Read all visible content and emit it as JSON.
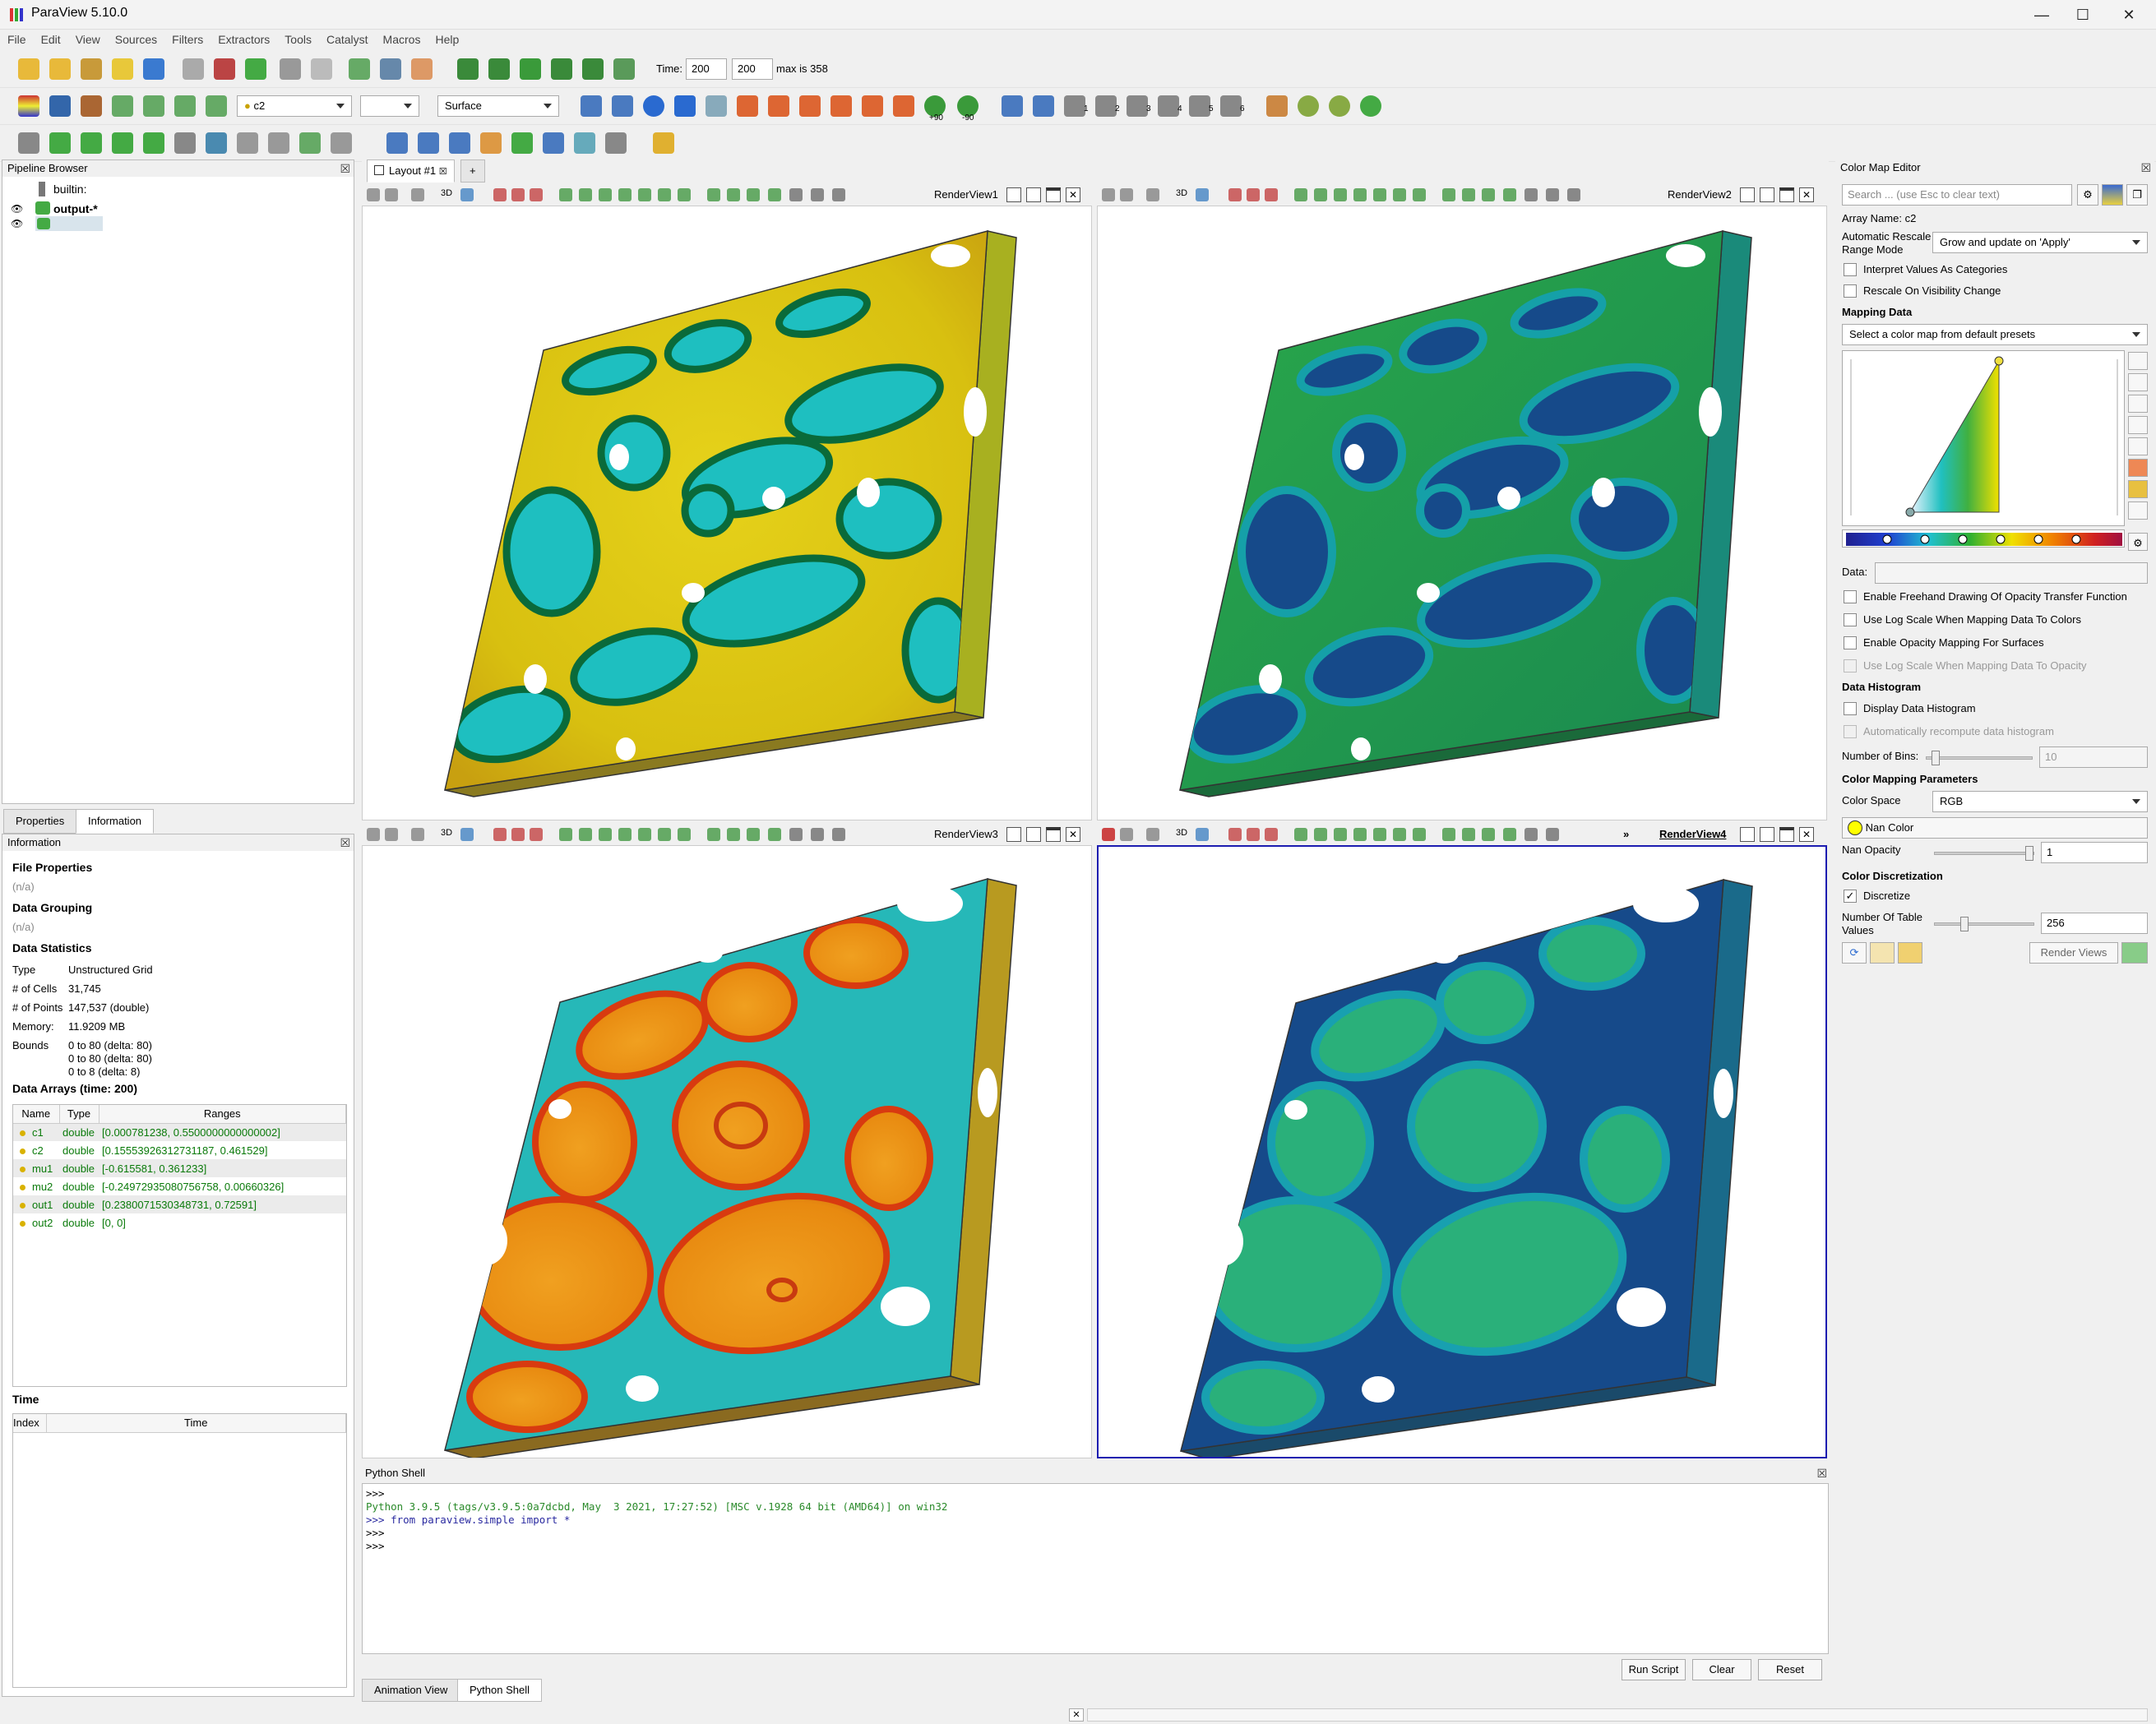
{
  "window": {
    "title": "ParaView 5.10.0",
    "min": "—",
    "max": "☐",
    "close": "✕"
  },
  "menu": [
    "File",
    "Edit",
    "View",
    "Sources",
    "Filters",
    "Extractors",
    "Tools",
    "Catalyst",
    "Macros",
    "Help"
  ],
  "toolbar": {
    "time_label": "Time:",
    "time_value": "200",
    "time_index": "200",
    "time_max": "max is 358",
    "array_combo": "c2",
    "component_combo": "",
    "representation_combo": "Surface",
    "rotate_pos": "+90",
    "rotate_neg": "-90",
    "camera_labels": [
      "1",
      "2",
      "3",
      "4",
      "5",
      "6"
    ]
  },
  "pipeline": {
    "title": "Pipeline Browser",
    "items": [
      "builtin:",
      "output-*",
      ""
    ]
  },
  "left_tabs": [
    "Properties",
    "Information"
  ],
  "information": {
    "title": "Information",
    "file_properties": "File Properties",
    "file_na": "(n/a)",
    "data_grouping": "Data Grouping",
    "grouping_na": "(n/a)",
    "data_statistics": "Data Statistics",
    "stats": [
      {
        "k": "Type",
        "v": "Unstructured Grid"
      },
      {
        "k": "# of Cells",
        "v": "31,745"
      },
      {
        "k": "# of Points",
        "v": "147,537 (double)"
      },
      {
        "k": "Memory:",
        "v": "11.9209 MB"
      }
    ],
    "bounds_label": "Bounds",
    "bounds": [
      "0 to 80 (delta: 80)",
      "0 to 80 (delta: 80)",
      "0 to 8 (delta: 8)"
    ],
    "data_arrays_title": "Data Arrays (time: 200)",
    "array_headers": [
      "Name",
      "Type",
      "Ranges"
    ],
    "arrays": [
      {
        "name": "c1",
        "type": "double",
        "range": "[0.000781238, 0.5500000000000002]"
      },
      {
        "name": "c2",
        "type": "double",
        "range": "[0.15553926312731187, 0.461529]"
      },
      {
        "name": "mu1",
        "type": "double",
        "range": "[-0.615581, 0.361233]"
      },
      {
        "name": "mu2",
        "type": "double",
        "range": "[-0.24972935080756758, 0.00660326]"
      },
      {
        "name": "out1",
        "type": "double",
        "range": "[0.2380071530348731, 0.72591]"
      },
      {
        "name": "out2",
        "type": "double",
        "range": "[0, 0]"
      }
    ],
    "time_title": "Time",
    "time_headers": [
      "Index",
      "Time"
    ]
  },
  "layout": {
    "tab": "Layout #1",
    "add": "+"
  },
  "views": [
    {
      "name": "RenderView1",
      "threeD": "3D"
    },
    {
      "name": "RenderView2",
      "threeD": "3D"
    },
    {
      "name": "RenderView3",
      "threeD": "3D"
    },
    {
      "name": "RenderView4",
      "threeD": "3D",
      "more": "»"
    }
  ],
  "colormap": {
    "title": "Color Map Editor",
    "search_placeholder": "Search ... (use Esc to clear text)",
    "array_name": "Array Name: c2",
    "auto_rescale_label1": "Automatic Rescale",
    "auto_rescale_label2": "Range Mode",
    "auto_rescale_value": "Grow and update on 'Apply'",
    "interpret_categories": "Interpret Values As Categories",
    "rescale_visibility": "Rescale On Visibility Change",
    "mapping_data": "Mapping Data",
    "preset_combo": "Select a color map from default presets",
    "data_label": "Data:",
    "enable_freehand": "Enable Freehand Drawing Of Opacity Transfer Function",
    "use_log_colors": "Use Log Scale When Mapping Data To Colors",
    "enable_opacity_surfaces": "Enable Opacity Mapping For Surfaces",
    "use_log_opacity": "Use Log Scale When Mapping Data To Opacity",
    "data_histogram": "Data Histogram",
    "display_histogram": "Display Data Histogram",
    "auto_recompute": "Automatically recompute data histogram",
    "num_bins_label": "Number of Bins:",
    "num_bins_value": "10",
    "num_bins_fraction": 0.05,
    "color_mapping_params": "Color Mapping Parameters",
    "color_space_label": "Color Space",
    "color_space_value": "RGB",
    "nan_color": "Nan Color",
    "nan_opacity_label": "Nan Opacity",
    "nan_opacity_value": "1",
    "nan_opacity_fraction": 1.0,
    "color_discretization": "Color Discretization",
    "discretize": "Discretize",
    "num_table_label1": "Number Of Table",
    "num_table_label2": "Values",
    "num_table_value": "256",
    "num_table_fraction": 0.28,
    "render_views": "Render Views"
  },
  "python": {
    "title": "Python Shell",
    "lines": [
      {
        "cls": "",
        "text": ">>>"
      },
      {
        "cls": "pgreen",
        "text": "Python 3.9.5 (tags/v3.9.5:0a7dcbd, May  3 2021, 17:27:52) [MSC v.1928 64 bit (AMD64)] on win32"
      },
      {
        "cls": "pblue",
        "text": ">>> from paraview.simple import *"
      },
      {
        "cls": "",
        "text": ">>>"
      },
      {
        "cls": "",
        "text": ">>>"
      }
    ],
    "run_script": "Run Script",
    "clear": "Clear",
    "reset": "Reset"
  },
  "bottom_tabs": [
    "Animation View",
    "Python Shell"
  ],
  "colors": {
    "accent": "#1c1cb0",
    "green_text": "#0a7a0a"
  }
}
